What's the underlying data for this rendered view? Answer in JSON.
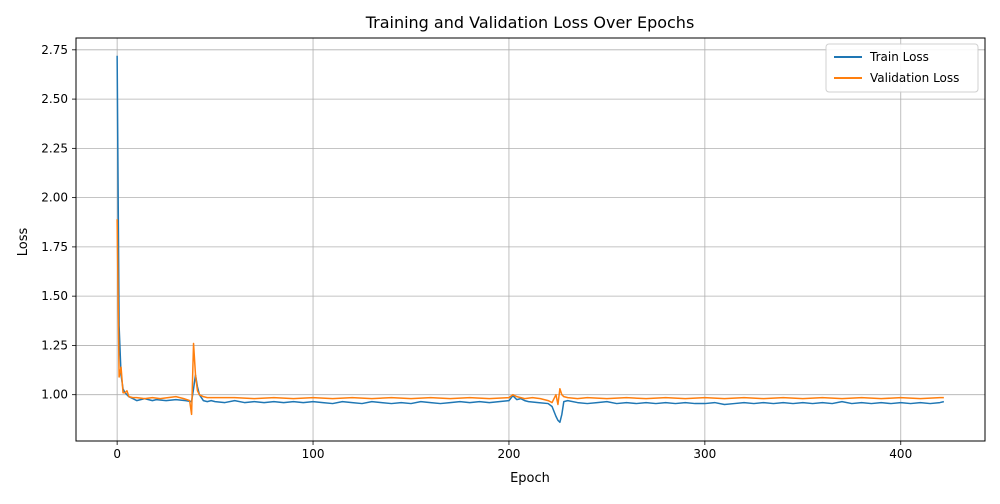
{
  "chart_data": {
    "type": "line",
    "title": "Training and Validation Loss Over Epochs",
    "xlabel": "Epoch",
    "ylabel": "Loss",
    "xlim": [
      -21,
      443
    ],
    "ylim": [
      0.765,
      2.81
    ],
    "xticks": [
      0,
      100,
      200,
      300,
      400
    ],
    "yticks": [
      1.0,
      1.25,
      1.5,
      1.75,
      2.0,
      2.25,
      2.5,
      2.75
    ],
    "xtick_labels": [
      "0",
      "100",
      "200",
      "300",
      "400"
    ],
    "ytick_labels": [
      "1.00",
      "1.25",
      "1.50",
      "1.75",
      "2.00",
      "2.25",
      "2.50",
      "2.75"
    ],
    "grid": true,
    "legend_position": "upper right",
    "series": [
      {
        "name": "Train Loss",
        "color": "#1f77b4",
        "x": [
          0,
          1,
          2,
          3,
          4,
          5,
          6,
          8,
          10,
          12,
          14,
          16,
          18,
          20,
          25,
          30,
          35,
          38,
          39,
          40,
          41,
          42,
          44,
          46,
          48,
          50,
          55,
          60,
          65,
          70,
          75,
          80,
          85,
          90,
          95,
          100,
          105,
          110,
          115,
          120,
          125,
          130,
          135,
          140,
          145,
          150,
          155,
          160,
          165,
          170,
          175,
          180,
          185,
          190,
          195,
          200,
          202,
          204,
          206,
          208,
          210,
          215,
          220,
          222,
          224,
          225,
          226,
          227,
          228,
          230,
          235,
          240,
          245,
          250,
          255,
          260,
          265,
          270,
          275,
          280,
          285,
          290,
          295,
          300,
          305,
          310,
          315,
          320,
          325,
          330,
          335,
          340,
          345,
          350,
          355,
          360,
          365,
          370,
          375,
          380,
          385,
          390,
          395,
          400,
          405,
          410,
          415,
          420,
          422
        ],
        "values": [
          2.72,
          1.35,
          1.1,
          1.03,
          1.01,
          1.0,
          0.99,
          0.98,
          0.97,
          0.975,
          0.98,
          0.975,
          0.97,
          0.975,
          0.97,
          0.975,
          0.97,
          0.965,
          1.03,
          1.1,
          1.04,
          1.0,
          0.97,
          0.965,
          0.97,
          0.965,
          0.96,
          0.97,
          0.96,
          0.965,
          0.96,
          0.965,
          0.96,
          0.965,
          0.96,
          0.965,
          0.96,
          0.955,
          0.965,
          0.96,
          0.955,
          0.965,
          0.96,
          0.955,
          0.96,
          0.955,
          0.965,
          0.96,
          0.955,
          0.96,
          0.965,
          0.96,
          0.965,
          0.96,
          0.965,
          0.97,
          0.995,
          0.975,
          0.98,
          0.97,
          0.965,
          0.96,
          0.955,
          0.94,
          0.89,
          0.87,
          0.86,
          0.9,
          0.965,
          0.97,
          0.96,
          0.955,
          0.96,
          0.965,
          0.955,
          0.96,
          0.955,
          0.96,
          0.955,
          0.96,
          0.955,
          0.96,
          0.955,
          0.955,
          0.96,
          0.95,
          0.955,
          0.96,
          0.955,
          0.96,
          0.955,
          0.96,
          0.955,
          0.96,
          0.955,
          0.96,
          0.955,
          0.965,
          0.955,
          0.96,
          0.955,
          0.96,
          0.955,
          0.96,
          0.955,
          0.96,
          0.955,
          0.96,
          0.965
        ]
      },
      {
        "name": "Validation Loss",
        "color": "#ff7f0e",
        "x": [
          0,
          1,
          2,
          3,
          4,
          5,
          6,
          8,
          10,
          14,
          18,
          22,
          26,
          30,
          34,
          37,
          38,
          39,
          40,
          41,
          42,
          44,
          46,
          48,
          50,
          60,
          70,
          80,
          90,
          100,
          110,
          120,
          130,
          140,
          150,
          160,
          170,
          180,
          190,
          200,
          202,
          204,
          206,
          208,
          212,
          216,
          220,
          222,
          224,
          225,
          226,
          227,
          228,
          230,
          235,
          240,
          250,
          260,
          270,
          280,
          290,
          300,
          310,
          320,
          330,
          340,
          350,
          360,
          370,
          380,
          390,
          400,
          410,
          420,
          422
        ],
        "values": [
          1.89,
          1.09,
          1.14,
          1.01,
          1.01,
          1.02,
          0.99,
          0.985,
          0.985,
          0.98,
          0.985,
          0.98,
          0.985,
          0.99,
          0.98,
          0.97,
          0.9,
          1.26,
          1.1,
          1.02,
          1.0,
          0.99,
          0.985,
          0.985,
          0.985,
          0.985,
          0.98,
          0.985,
          0.98,
          0.985,
          0.98,
          0.985,
          0.98,
          0.985,
          0.98,
          0.985,
          0.98,
          0.985,
          0.98,
          0.985,
          1.0,
          0.99,
          0.985,
          0.98,
          0.985,
          0.98,
          0.97,
          0.96,
          1.0,
          0.95,
          1.03,
          1.0,
          0.99,
          0.985,
          0.98,
          0.985,
          0.98,
          0.985,
          0.98,
          0.985,
          0.98,
          0.985,
          0.98,
          0.985,
          0.98,
          0.985,
          0.98,
          0.985,
          0.98,
          0.985,
          0.98,
          0.985,
          0.98,
          0.985,
          0.985
        ]
      }
    ]
  }
}
